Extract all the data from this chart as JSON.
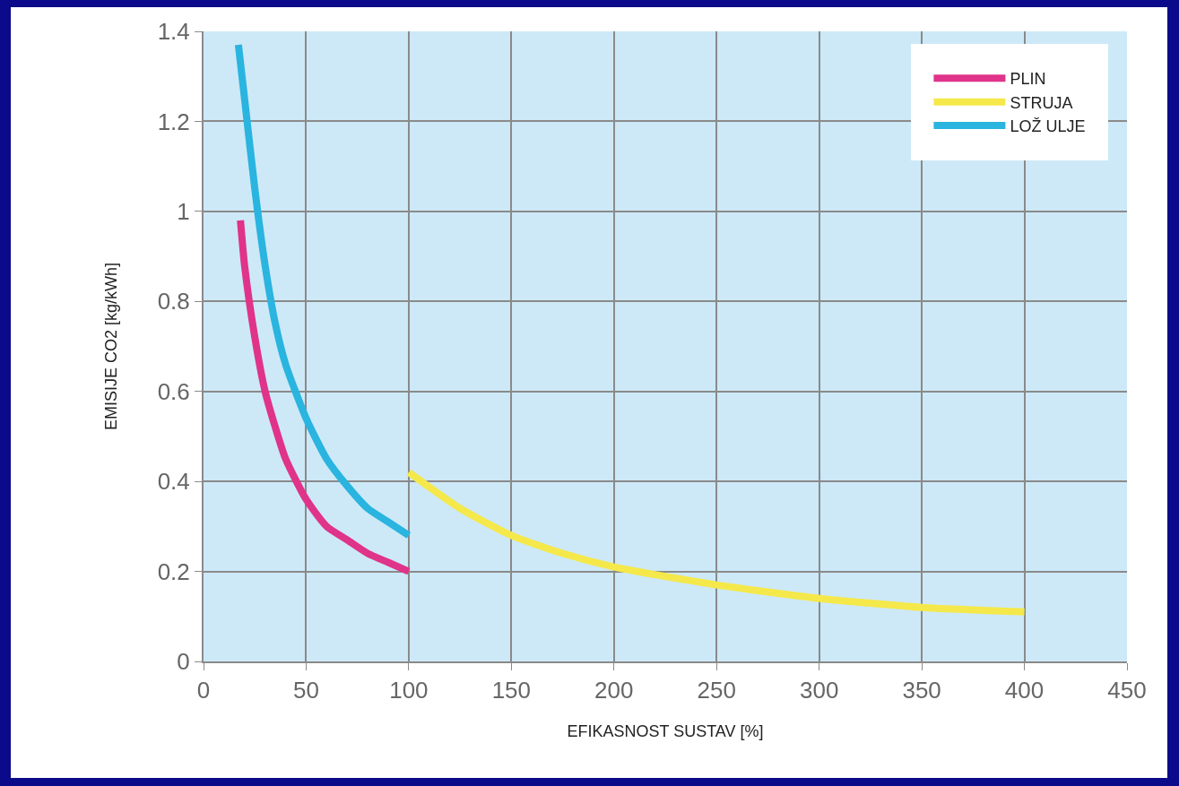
{
  "chart_data": {
    "type": "line",
    "xlabel": "EFIKASNOST SUSTAV [%]",
    "ylabel": "EMISIJE CO2 [kg/kWh]",
    "xlim": [
      0,
      450
    ],
    "xticks": [
      0,
      50,
      100,
      150,
      200,
      250,
      300,
      350,
      400,
      450
    ],
    "ylim": [
      0,
      1.4
    ],
    "yticks": [
      0,
      0.2,
      0.4,
      0.6,
      0.8,
      1,
      1.2,
      1.4
    ],
    "grid": true,
    "legend": "top right",
    "marker": "none",
    "line_style": "solid",
    "series": [
      {
        "name": "PLIN",
        "color": "#e0338a",
        "x": [
          18,
          20,
          25,
          30,
          35,
          40,
          50,
          60,
          70,
          80,
          90,
          100
        ],
        "values": [
          0.98,
          0.88,
          0.72,
          0.6,
          0.52,
          0.45,
          0.36,
          0.3,
          0.27,
          0.24,
          0.22,
          0.2
        ]
      },
      {
        "name": "STRUJA",
        "color": "#f5e84a",
        "x": [
          100,
          125,
          150,
          175,
          200,
          250,
          300,
          350,
          400
        ],
        "values": [
          0.42,
          0.34,
          0.28,
          0.24,
          0.21,
          0.17,
          0.14,
          0.12,
          0.11
        ]
      },
      {
        "name": "LOŽ ULJE",
        "color": "#2ab4e0",
        "x": [
          17,
          20,
          25,
          30,
          35,
          40,
          50,
          60,
          70,
          80,
          90,
          100
        ],
        "values": [
          1.37,
          1.25,
          1.05,
          0.88,
          0.75,
          0.66,
          0.54,
          0.45,
          0.39,
          0.34,
          0.31,
          0.28
        ]
      }
    ]
  }
}
